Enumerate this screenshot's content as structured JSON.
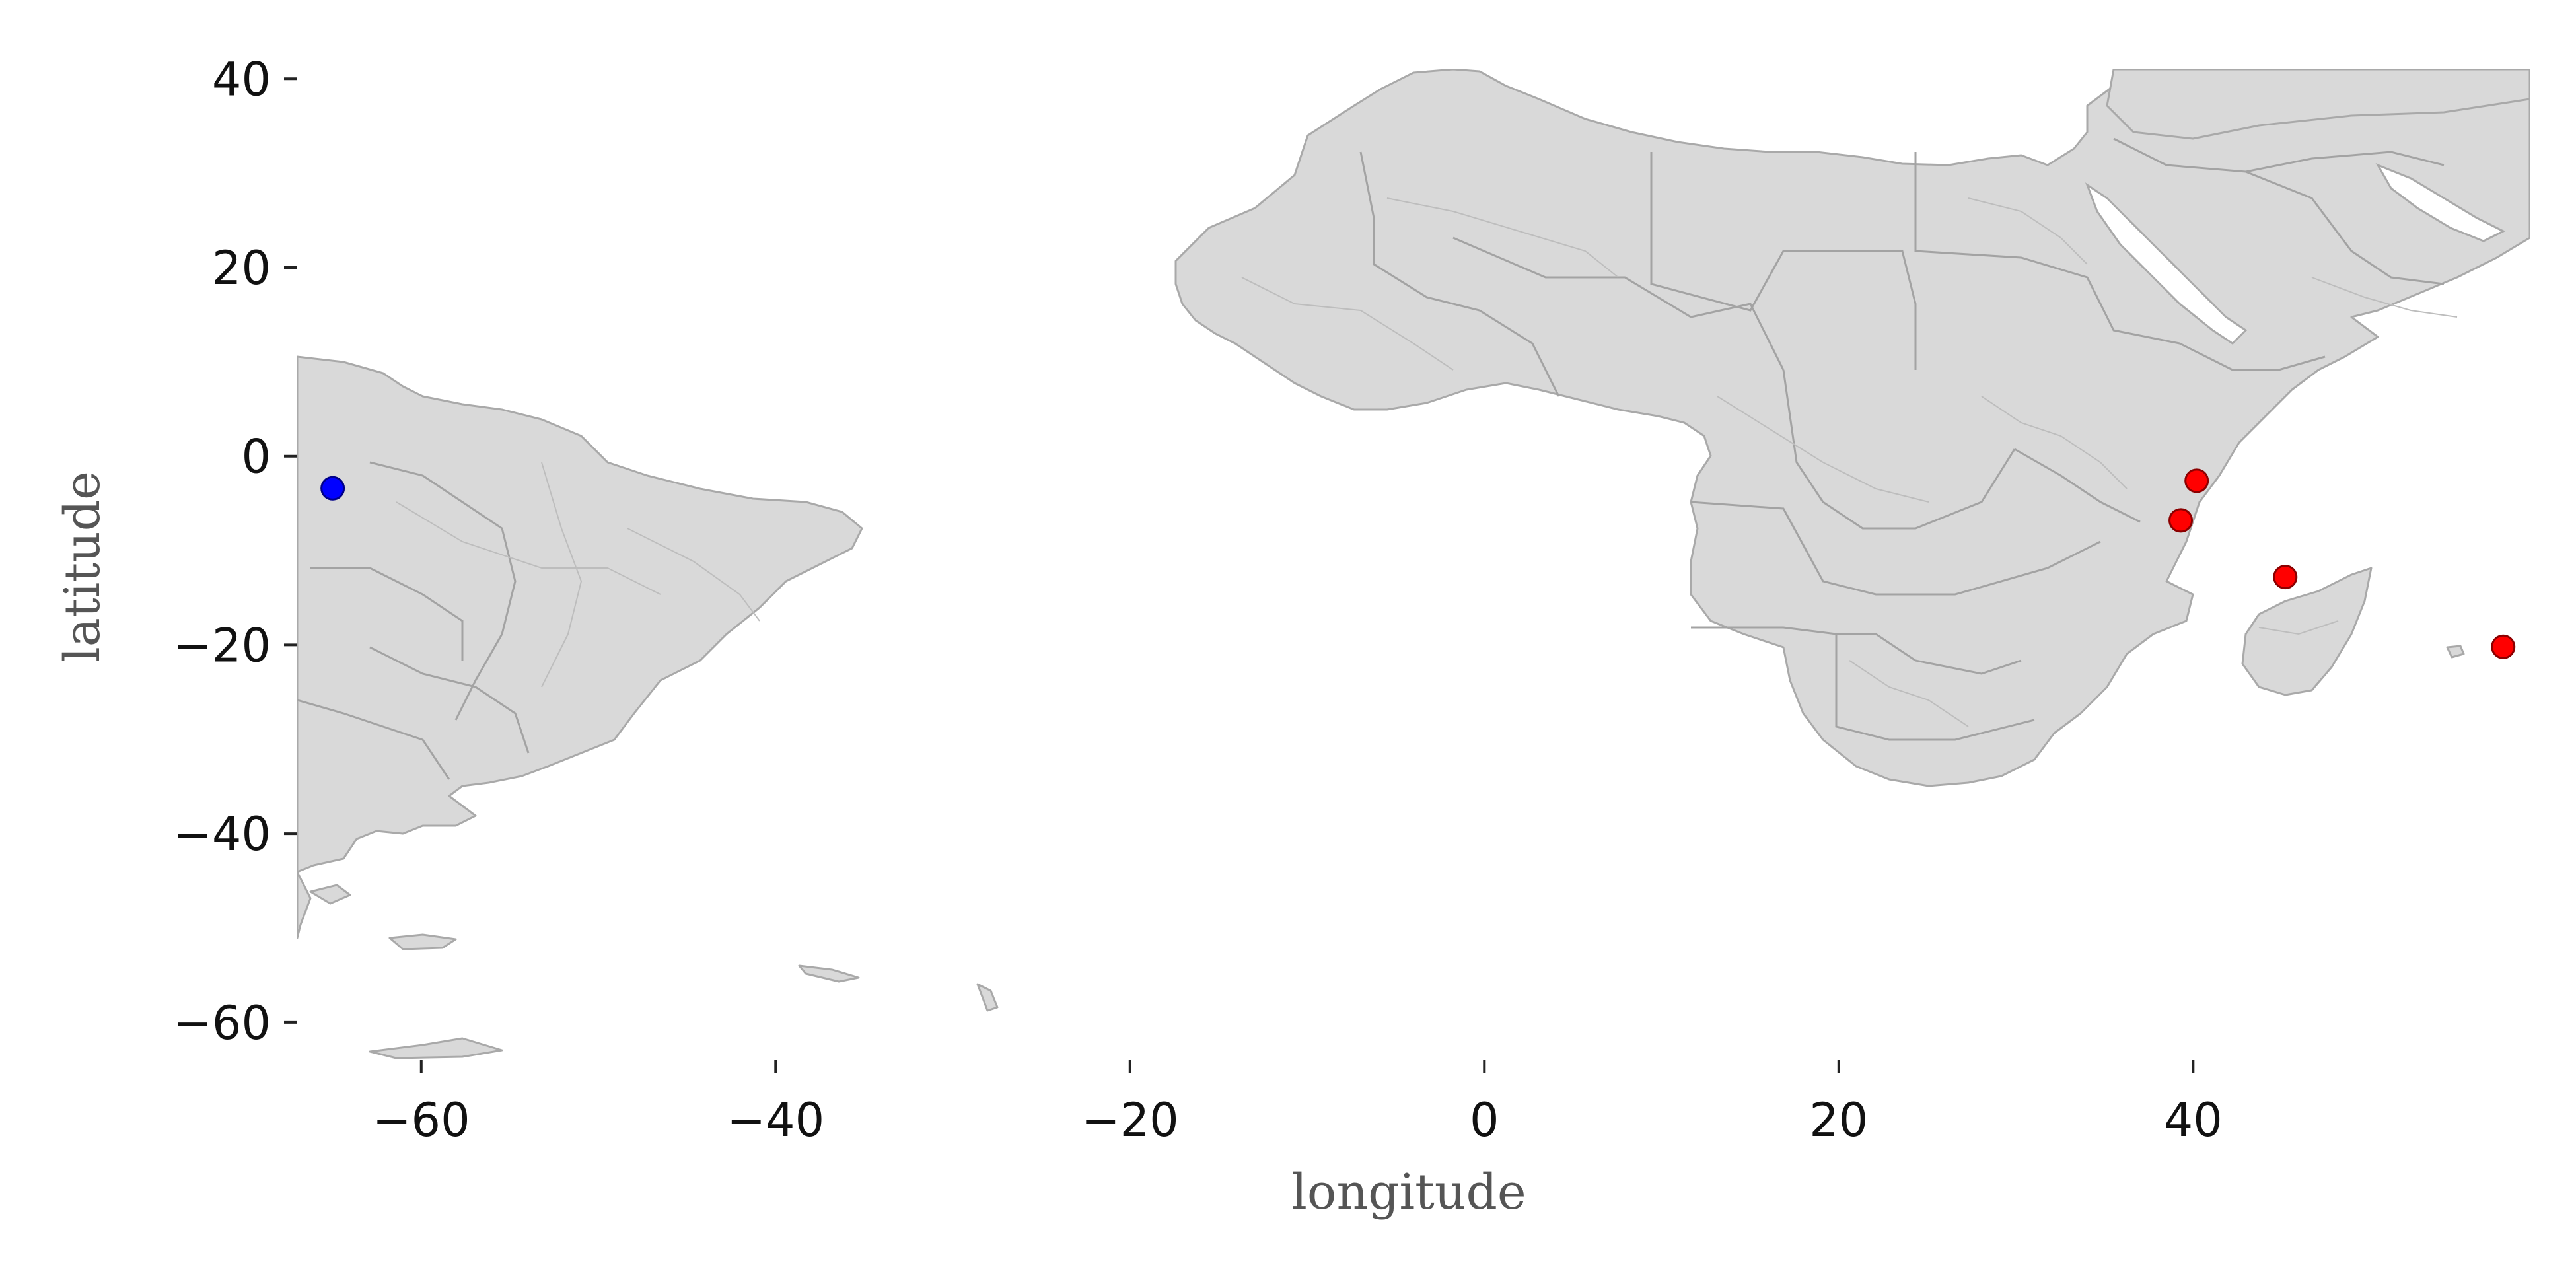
{
  "chart_data": {
    "type": "scatter",
    "title": "",
    "xlabel": "longitude",
    "ylabel": "latitude",
    "xlim": [
      -67,
      59
    ],
    "ylim": [
      -64,
      41
    ],
    "x_ticks": [
      -60,
      -40,
      -20,
      0,
      20,
      40
    ],
    "y_ticks": [
      -60,
      -40,
      -20,
      0,
      20,
      40
    ],
    "x_tick_labels": [
      "−60",
      "−40",
      "−20",
      "0",
      "20",
      "40"
    ],
    "y_tick_labels": [
      "−60",
      "−40",
      "−20",
      "0",
      "20",
      "40"
    ],
    "grid": false,
    "basemap": "country and province boundaries (South America, Africa, Arabian Peninsula)",
    "land_color": "#d9d9d9",
    "boundary_color": "#a9a9a9",
    "series": [
      {
        "color": "#0000ff",
        "points": [
          {
            "lon": -65.0,
            "lat": -3.4
          }
        ]
      },
      {
        "color": "#ff0000",
        "points": [
          {
            "lon": 40.2,
            "lat": -2.6
          },
          {
            "lon": 39.3,
            "lat": -6.8
          },
          {
            "lon": 45.2,
            "lat": -12.8
          },
          {
            "lon": 57.5,
            "lat": -20.2
          }
        ]
      }
    ]
  }
}
